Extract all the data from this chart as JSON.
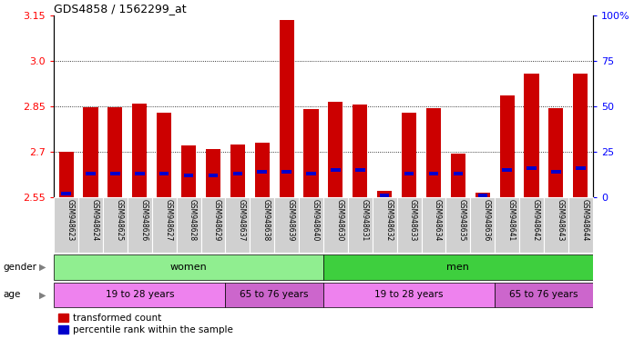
{
  "title": "GDS4858 / 1562299_at",
  "samples": [
    "GSM948623",
    "GSM948624",
    "GSM948625",
    "GSM948626",
    "GSM948627",
    "GSM948628",
    "GSM948629",
    "GSM948637",
    "GSM948638",
    "GSM948639",
    "GSM948640",
    "GSM948630",
    "GSM948631",
    "GSM948632",
    "GSM948633",
    "GSM948634",
    "GSM948635",
    "GSM948636",
    "GSM948641",
    "GSM948642",
    "GSM948643",
    "GSM948644"
  ],
  "red_values": [
    2.7,
    2.848,
    2.848,
    2.86,
    2.83,
    2.72,
    2.71,
    2.725,
    2.73,
    3.135,
    2.84,
    2.865,
    2.855,
    2.57,
    2.83,
    2.845,
    2.695,
    2.565,
    2.885,
    2.96,
    2.845,
    2.96
  ],
  "blue_pct": [
    2,
    13,
    13,
    13,
    13,
    12,
    12,
    13,
    14,
    14,
    13,
    15,
    15,
    1,
    13,
    13,
    13,
    1,
    15,
    16,
    14,
    16
  ],
  "y_min": 2.55,
  "y_max": 3.15,
  "y_ticks": [
    2.55,
    2.7,
    2.85,
    3.0,
    3.15
  ],
  "y2_ticks": [
    0,
    25,
    50,
    75,
    100
  ],
  "bar_width": 0.6,
  "bar_base": 2.55,
  "red_color": "#cc0000",
  "blue_color": "#0000cc",
  "grid_lines": [
    2.7,
    2.85,
    3.0
  ],
  "gender_color_women": "#90ee90",
  "gender_color_men": "#3ecf3e",
  "age_color_young": "#ee82ee",
  "age_color_old": "#cc66cc",
  "legend_red": "transformed count",
  "legend_blue": "percentile rank within the sample",
  "women_count": 11,
  "men_count": 11,
  "women_young_count": 7,
  "women_old_count": 4,
  "men_young_count": 7,
  "men_old_count": 4
}
